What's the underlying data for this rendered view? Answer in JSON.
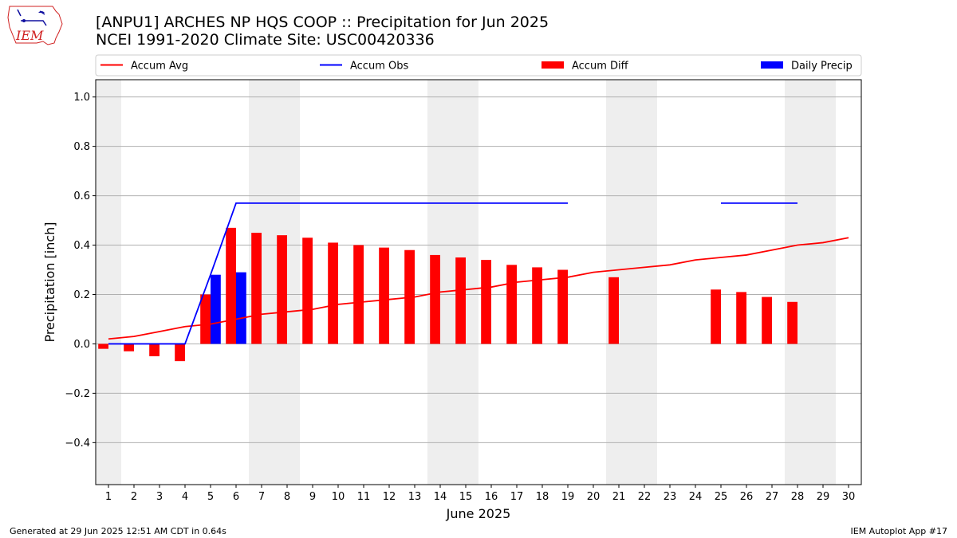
{
  "header": {
    "title_line1": "[ANPU1] ARCHES NP HQS COOP :: Precipitation for Jun 2025",
    "title_line2": "NCEI 1991-2020 Climate Site: USC00420336",
    "logo_text": "IEM"
  },
  "footer": {
    "left": "Generated at 29 Jun 2025 12:51 AM CDT in 0.64s",
    "right": "IEM Autoplot App #17"
  },
  "colors": {
    "avg": "#ff0000",
    "obs": "#0000ff",
    "diff": "#ff0000",
    "daily": "#0000ff",
    "weekend": "#eeeeee",
    "grid": "#b0b0b0"
  },
  "chart_data": {
    "type": "bar",
    "xlabel": "June 2025",
    "ylabel": "Precipitation [inch]",
    "xlim": [
      0.5,
      30.5
    ],
    "ylim": [
      -0.57,
      1.07
    ],
    "yticks": [
      -0.4,
      -0.2,
      0.0,
      0.2,
      0.4,
      0.6,
      0.8,
      1.0
    ],
    "ytick_labels": [
      "−0.4",
      "−0.2",
      "0.0",
      "0.2",
      "0.4",
      "0.6",
      "0.8",
      "1.0"
    ],
    "xticks": [
      1,
      2,
      3,
      4,
      5,
      6,
      7,
      8,
      9,
      10,
      11,
      12,
      13,
      14,
      15,
      16,
      17,
      18,
      19,
      20,
      21,
      22,
      23,
      24,
      25,
      26,
      27,
      28,
      29,
      30
    ],
    "grid": "horizontal",
    "weekend_spans": [
      [
        0.5,
        1.5
      ],
      [
        6.5,
        8.5
      ],
      [
        13.5,
        15.5
      ],
      [
        20.5,
        22.5
      ],
      [
        27.5,
        29.5
      ]
    ],
    "legend": {
      "placement": "top",
      "entries": [
        {
          "label": "Accum Avg",
          "kind": "line",
          "color": "#ff0000"
        },
        {
          "label": "Accum Obs",
          "kind": "line",
          "color": "#0000ff"
        },
        {
          "label": "Accum Diff",
          "kind": "bar",
          "color": "#ff0000"
        },
        {
          "label": "Daily Precip",
          "kind": "bar",
          "color": "#0000ff"
        }
      ]
    },
    "series": [
      {
        "name": "Accum Avg",
        "kind": "line",
        "x": [
          1,
          2,
          3,
          4,
          5,
          6,
          7,
          8,
          9,
          10,
          11,
          12,
          13,
          14,
          15,
          16,
          17,
          18,
          19,
          20,
          21,
          22,
          23,
          24,
          25,
          26,
          27,
          28,
          29,
          30
        ],
        "values": [
          0.02,
          0.03,
          0.05,
          0.07,
          0.08,
          0.1,
          0.12,
          0.13,
          0.14,
          0.16,
          0.17,
          0.18,
          0.19,
          0.21,
          0.22,
          0.23,
          0.25,
          0.26,
          0.27,
          0.29,
          0.3,
          0.31,
          0.32,
          0.34,
          0.35,
          0.36,
          0.38,
          0.4,
          0.41,
          0.43
        ]
      },
      {
        "name": "Accum Obs",
        "kind": "line",
        "segments": [
          {
            "x": [
              1,
              2,
              3,
              4,
              5,
              6,
              7,
              8,
              9,
              10,
              11,
              12,
              13,
              14,
              15,
              16,
              17,
              18,
              19
            ],
            "values": [
              0,
              0,
              0,
              0,
              0.28,
              0.57,
              0.57,
              0.57,
              0.57,
              0.57,
              0.57,
              0.57,
              0.57,
              0.57,
              0.57,
              0.57,
              0.57,
              0.57,
              0.57
            ]
          },
          {
            "x": [
              25,
              26,
              27,
              28
            ],
            "values": [
              0.57,
              0.57,
              0.57,
              0.57
            ]
          }
        ]
      },
      {
        "name": "Accum Diff",
        "kind": "bar",
        "x": [
          1,
          2,
          3,
          4,
          5,
          6,
          7,
          8,
          9,
          10,
          11,
          12,
          13,
          14,
          15,
          16,
          17,
          18,
          19,
          21,
          25,
          26,
          27,
          28
        ],
        "values": [
          -0.02,
          -0.03,
          -0.05,
          -0.07,
          0.2,
          0.47,
          0.45,
          0.44,
          0.43,
          0.41,
          0.4,
          0.39,
          0.38,
          0.36,
          0.35,
          0.34,
          0.32,
          0.31,
          0.3,
          0.27,
          0.22,
          0.21,
          0.19,
          0.17
        ]
      },
      {
        "name": "Daily Precip",
        "kind": "bar",
        "x": [
          5,
          6
        ],
        "values": [
          0.28,
          0.29
        ]
      }
    ]
  }
}
